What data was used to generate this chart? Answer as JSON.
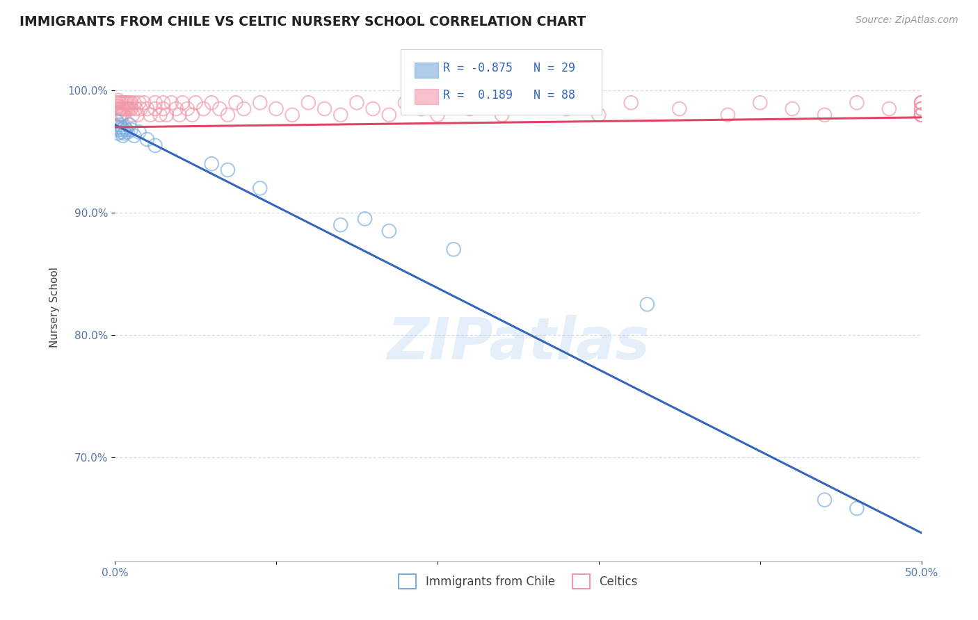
{
  "title": "IMMIGRANTS FROM CHILE VS CELTIC NURSERY SCHOOL CORRELATION CHART",
  "source_text": "Source: ZipAtlas.com",
  "ylabel": "Nursery School",
  "xmin": 0.0,
  "xmax": 0.5,
  "ymin": 0.615,
  "ymax": 1.03,
  "yticks": [
    1.0,
    0.9,
    0.8,
    0.7
  ],
  "ytick_labels": [
    "100.0%",
    "90.0%",
    "80.0%",
    "70.0%"
  ],
  "xticks": [
    0.0,
    0.1,
    0.2,
    0.3,
    0.4,
    0.5
  ],
  "xtick_labels": [
    "0.0%",
    "",
    "",
    "",
    "",
    "50.0%"
  ],
  "blue_R": -0.875,
  "blue_N": 29,
  "pink_R": 0.189,
  "pink_N": 88,
  "blue_color": "#7aacdc",
  "pink_color": "#f099aa",
  "blue_line_color": "#3366bb",
  "pink_line_color": "#dd4466",
  "watermark": "ZIPatlas",
  "blue_trend_x0": 0.0,
  "blue_trend_y0": 0.972,
  "blue_trend_x1": 0.5,
  "blue_trend_y1": 0.638,
  "pink_trend_x0": 0.0,
  "pink_trend_y0": 0.97,
  "pink_trend_x1": 0.5,
  "pink_trend_y1": 0.978,
  "blue_scatter_x": [
    0.001,
    0.002,
    0.002,
    0.003,
    0.003,
    0.004,
    0.004,
    0.005,
    0.005,
    0.006,
    0.006,
    0.007,
    0.008,
    0.009,
    0.01,
    0.012,
    0.015,
    0.02,
    0.025,
    0.06,
    0.07,
    0.09,
    0.14,
    0.155,
    0.17,
    0.21,
    0.33,
    0.44,
    0.46
  ],
  "blue_scatter_y": [
    0.975,
    0.97,
    0.965,
    0.972,
    0.968,
    0.97,
    0.966,
    0.968,
    0.963,
    0.97,
    0.965,
    0.968,
    0.966,
    0.972,
    0.968,
    0.963,
    0.966,
    0.96,
    0.955,
    0.94,
    0.935,
    0.92,
    0.89,
    0.895,
    0.885,
    0.87,
    0.825,
    0.665,
    0.658
  ],
  "pink_scatter_x": [
    0.001,
    0.001,
    0.002,
    0.002,
    0.002,
    0.003,
    0.003,
    0.003,
    0.004,
    0.004,
    0.004,
    0.005,
    0.005,
    0.005,
    0.006,
    0.006,
    0.007,
    0.007,
    0.008,
    0.008,
    0.009,
    0.009,
    0.01,
    0.01,
    0.011,
    0.012,
    0.013,
    0.014,
    0.015,
    0.016,
    0.018,
    0.02,
    0.022,
    0.025,
    0.025,
    0.028,
    0.03,
    0.03,
    0.032,
    0.035,
    0.038,
    0.04,
    0.042,
    0.045,
    0.048,
    0.05,
    0.055,
    0.06,
    0.065,
    0.07,
    0.075,
    0.08,
    0.09,
    0.1,
    0.11,
    0.12,
    0.13,
    0.14,
    0.15,
    0.16,
    0.17,
    0.18,
    0.19,
    0.2,
    0.21,
    0.22,
    0.24,
    0.26,
    0.28,
    0.3,
    0.32,
    0.35,
    0.38,
    0.4,
    0.42,
    0.44,
    0.46,
    0.48,
    0.5,
    0.5,
    0.5,
    0.5,
    0.5,
    0.5,
    0.5,
    0.5,
    0.5,
    0.5
  ],
  "pink_scatter_y": [
    0.99,
    0.985,
    0.992,
    0.987,
    0.982,
    0.99,
    0.985,
    0.98,
    0.99,
    0.985,
    0.98,
    0.99,
    0.985,
    0.98,
    0.99,
    0.985,
    0.99,
    0.985,
    0.99,
    0.985,
    0.99,
    0.985,
    0.99,
    0.985,
    0.98,
    0.99,
    0.985,
    0.98,
    0.99,
    0.985,
    0.99,
    0.985,
    0.98,
    0.99,
    0.985,
    0.98,
    0.99,
    0.985,
    0.98,
    0.99,
    0.985,
    0.98,
    0.99,
    0.985,
    0.98,
    0.99,
    0.985,
    0.99,
    0.985,
    0.98,
    0.99,
    0.985,
    0.99,
    0.985,
    0.98,
    0.99,
    0.985,
    0.98,
    0.99,
    0.985,
    0.98,
    0.99,
    0.985,
    0.98,
    0.99,
    0.985,
    0.98,
    0.99,
    0.985,
    0.98,
    0.99,
    0.985,
    0.98,
    0.99,
    0.985,
    0.98,
    0.99,
    0.985,
    0.98,
    0.99,
    0.985,
    0.98,
    0.99,
    0.985,
    0.98,
    0.99,
    0.985,
    0.98
  ]
}
